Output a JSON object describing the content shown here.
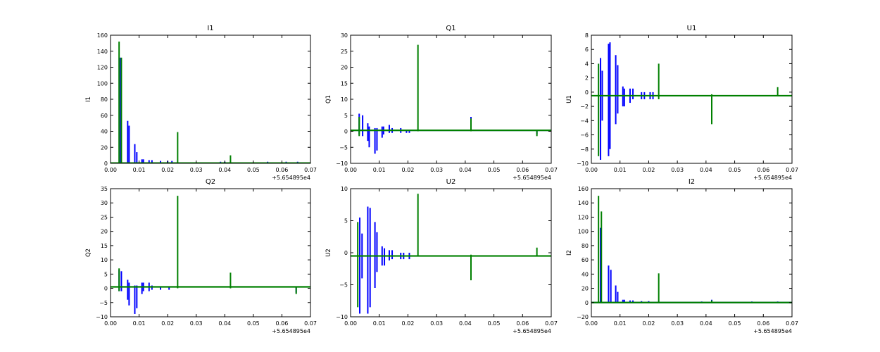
{
  "chart_data": [
    {
      "type": "line",
      "title": "I1",
      "ylabel": "I1",
      "xlim": [
        0.0,
        0.07
      ],
      "ylim": [
        0,
        160
      ],
      "x_ticks": [
        "0.00",
        "0.01",
        "0.02",
        "0.03",
        "0.04",
        "0.05",
        "0.06",
        "0.07"
      ],
      "y_ticks": [
        "0",
        "20",
        "40",
        "60",
        "80",
        "100",
        "120",
        "140",
        "160"
      ],
      "x_offset_label": "+5.654895e4",
      "baseline": 0.3,
      "series": [
        {
          "color": "#0000ff",
          "spikes": [
            [
              0.0035,
              0,
              132
            ],
            [
              0.006,
              0,
              53
            ],
            [
              0.0065,
              0,
              47
            ],
            [
              0.0085,
              0,
              24
            ],
            [
              0.0092,
              0,
              14
            ],
            [
              0.011,
              0,
              5
            ],
            [
              0.0115,
              0,
              5
            ],
            [
              0.0135,
              0,
              4
            ],
            [
              0.0145,
              0,
              4
            ],
            [
              0.0175,
              0,
              3
            ],
            [
              0.02,
              0,
              3
            ],
            [
              0.0215,
              0,
              3
            ],
            [
              0.0385,
              0,
              2
            ],
            [
              0.04,
              0,
              2
            ],
            [
              0.055,
              0,
              2
            ],
            [
              0.0615,
              0,
              2
            ],
            [
              0.0655,
              0,
              2
            ]
          ]
        },
        {
          "color": "#008000",
          "spikes": [
            [
              0.003,
              0,
              152
            ],
            [
              0.0038,
              0,
              132
            ],
            [
              0.0235,
              0,
              39
            ],
            [
              0.042,
              0,
              10
            ],
            [
              0.065,
              0,
              1
            ]
          ]
        }
      ]
    },
    {
      "type": "line",
      "title": "Q1",
      "ylabel": "Q1",
      "xlim": [
        0.0,
        0.07
      ],
      "ylim": [
        -10,
        30
      ],
      "x_ticks": [
        "0.00",
        "0.01",
        "0.02",
        "0.03",
        "0.04",
        "0.05",
        "0.06",
        "0.07"
      ],
      "y_ticks": [
        "−10",
        "−5",
        "0",
        "5",
        "10",
        "15",
        "20",
        "25",
        "30"
      ],
      "x_offset_label": "+5.654895e4",
      "baseline": 0.3,
      "series": [
        {
          "color": "#0000ff",
          "spikes": [
            [
              0.003,
              -1,
              5.5
            ],
            [
              0.0042,
              -1.5,
              5
            ],
            [
              0.006,
              -3,
              2.5
            ],
            [
              0.0065,
              -5,
              1.5
            ],
            [
              0.0085,
              -7,
              1
            ],
            [
              0.0092,
              -6,
              1
            ],
            [
              0.011,
              -2,
              1.5
            ],
            [
              0.0115,
              -1,
              1.5
            ],
            [
              0.0135,
              -0.5,
              2
            ],
            [
              0.0145,
              -0.5,
              1
            ],
            [
              0.0175,
              -0.5,
              1
            ],
            [
              0.0195,
              -0.5,
              0.5
            ],
            [
              0.0205,
              -0.5,
              0.5
            ],
            [
              0.042,
              0,
              4.5
            ],
            [
              0.065,
              -1,
              0.5
            ]
          ]
        },
        {
          "color": "#008000",
          "spikes": [
            [
              0.003,
              -1.5,
              4.5
            ],
            [
              0.0235,
              0,
              27
            ],
            [
              0.042,
              0,
              4
            ],
            [
              0.065,
              -1.5,
              0.3
            ]
          ]
        }
      ]
    },
    {
      "type": "line",
      "title": "U1",
      "ylabel": "U1",
      "xlim": [
        0.0,
        0.07
      ],
      "ylim": [
        -10,
        8
      ],
      "x_ticks": [
        "0.00",
        "0.01",
        "0.02",
        "0.03",
        "0.04",
        "0.05",
        "0.06",
        "0.07"
      ],
      "y_ticks": [
        "−10",
        "−8",
        "−6",
        "−4",
        "−2",
        "0",
        "2",
        "4",
        "6",
        "8"
      ],
      "x_offset_label": "+5.654895e4",
      "baseline": -0.5,
      "series": [
        {
          "color": "#0000ff",
          "spikes": [
            [
              0.0032,
              -9.5,
              4.8
            ],
            [
              0.0038,
              -4,
              3
            ],
            [
              0.006,
              -9,
              6.8
            ],
            [
              0.0065,
              -8,
              7
            ],
            [
              0.0085,
              -4.5,
              5.2
            ],
            [
              0.0092,
              -3,
              3.8
            ],
            [
              0.011,
              -2,
              0.8
            ],
            [
              0.0115,
              -2,
              0.5
            ],
            [
              0.0135,
              -1.5,
              0.5
            ],
            [
              0.0145,
              -1,
              0.5
            ],
            [
              0.0175,
              -1,
              0
            ],
            [
              0.0185,
              -1,
              0
            ],
            [
              0.0205,
              -1,
              0
            ],
            [
              0.0215,
              -1,
              0
            ]
          ]
        },
        {
          "color": "#008000",
          "spikes": [
            [
              0.0025,
              -9,
              4
            ],
            [
              0.0235,
              -1,
              4
            ],
            [
              0.042,
              -4.5,
              -0.3
            ],
            [
              0.065,
              -0.5,
              0.7
            ]
          ]
        }
      ]
    },
    {
      "type": "line",
      "title": "Q2",
      "ylabel": "Q2",
      "xlim": [
        0.0,
        0.07
      ],
      "ylim": [
        -10,
        35
      ],
      "x_ticks": [
        "0.00",
        "0.01",
        "0.02",
        "0.03",
        "0.04",
        "0.05",
        "0.06",
        "0.07"
      ],
      "y_ticks": [
        "−10",
        "−5",
        "0",
        "5",
        "10",
        "15",
        "20",
        "25",
        "30",
        "35"
      ],
      "x_offset_label": "+5.654895e4",
      "baseline": 0.5,
      "series": [
        {
          "color": "#0000ff",
          "spikes": [
            [
              0.003,
              -1,
              6.5
            ],
            [
              0.0038,
              -1,
              6
            ],
            [
              0.006,
              -4,
              3
            ],
            [
              0.0065,
              -6,
              2
            ],
            [
              0.0085,
              -9,
              1
            ],
            [
              0.0092,
              -7,
              1
            ],
            [
              0.011,
              -2,
              2
            ],
            [
              0.0115,
              -1,
              2
            ],
            [
              0.0135,
              -1,
              2
            ],
            [
              0.0145,
              -0.5,
              1
            ],
            [
              0.0175,
              -0.5,
              0.5
            ],
            [
              0.0205,
              -0.5,
              0.5
            ],
            [
              0.065,
              -1.5,
              0.5
            ]
          ]
        },
        {
          "color": "#008000",
          "spikes": [
            [
              0.003,
              -1,
              7
            ],
            [
              0.0235,
              0,
              32.5
            ],
            [
              0.042,
              0,
              5.5
            ],
            [
              0.065,
              -2,
              0.3
            ]
          ]
        }
      ]
    },
    {
      "type": "line",
      "title": "U2",
      "ylabel": "U2",
      "xlim": [
        0.0,
        0.07
      ],
      "ylim": [
        -10,
        10
      ],
      "x_ticks": [
        "0.00",
        "0.01",
        "0.02",
        "0.03",
        "0.04",
        "0.05",
        "0.06",
        "0.07"
      ],
      "y_ticks": [
        "−10",
        "−5",
        "0",
        "5",
        "10"
      ],
      "x_offset_label": "+5.654895e4",
      "baseline": -0.5,
      "series": [
        {
          "color": "#0000ff",
          "spikes": [
            [
              0.0032,
              -9.5,
              5.5
            ],
            [
              0.004,
              -4,
              3
            ],
            [
              0.006,
              -9.5,
              7.2
            ],
            [
              0.0068,
              -8.5,
              7
            ],
            [
              0.0085,
              -5.5,
              4.8
            ],
            [
              0.0092,
              -3,
              3.2
            ],
            [
              0.011,
              -2,
              1
            ],
            [
              0.0118,
              -2,
              0.7
            ],
            [
              0.0135,
              -1.2,
              0.4
            ],
            [
              0.0145,
              -1,
              0.4
            ],
            [
              0.0175,
              -1,
              0
            ],
            [
              0.0185,
              -1,
              0
            ],
            [
              0.0205,
              -1,
              0
            ]
          ]
        },
        {
          "color": "#008000",
          "spikes": [
            [
              0.0025,
              -8.5,
              4.8
            ],
            [
              0.0235,
              -0.5,
              9.2
            ],
            [
              0.042,
              -4.3,
              -0.3
            ],
            [
              0.065,
              -0.5,
              0.8
            ]
          ]
        }
      ]
    },
    {
      "type": "line",
      "title": "I2",
      "ylabel": "I2",
      "xlim": [
        0.0,
        0.07
      ],
      "ylim": [
        -20,
        160
      ],
      "x_ticks": [
        "0.00",
        "0.01",
        "0.02",
        "0.03",
        "0.04",
        "0.05",
        "0.06",
        "0.07"
      ],
      "y_ticks": [
        "−20",
        "0",
        "20",
        "40",
        "60",
        "80",
        "100",
        "120",
        "140",
        "160"
      ],
      "x_offset_label": "+5.654895e4",
      "baseline": 0,
      "series": [
        {
          "color": "#0000ff",
          "spikes": [
            [
              0.0032,
              0,
              105
            ],
            [
              0.006,
              0,
              52
            ],
            [
              0.0068,
              0,
              46
            ],
            [
              0.0085,
              0,
              24
            ],
            [
              0.0092,
              0,
              15
            ],
            [
              0.011,
              0,
              4
            ],
            [
              0.0115,
              0,
              4
            ],
            [
              0.0135,
              0,
              3
            ],
            [
              0.0145,
              0,
              3
            ],
            [
              0.0175,
              0,
              2
            ],
            [
              0.02,
              0,
              2
            ],
            [
              0.0385,
              0,
              1.5
            ],
            [
              0.042,
              0,
              4
            ],
            [
              0.056,
              0,
              1.5
            ],
            [
              0.065,
              0,
              1.5
            ]
          ]
        },
        {
          "color": "#008000",
          "spikes": [
            [
              0.0025,
              0,
              150
            ],
            [
              0.0035,
              0,
              128
            ],
            [
              0.0235,
              0,
              41
            ],
            [
              0.042,
              0,
              3
            ]
          ]
        }
      ]
    }
  ]
}
